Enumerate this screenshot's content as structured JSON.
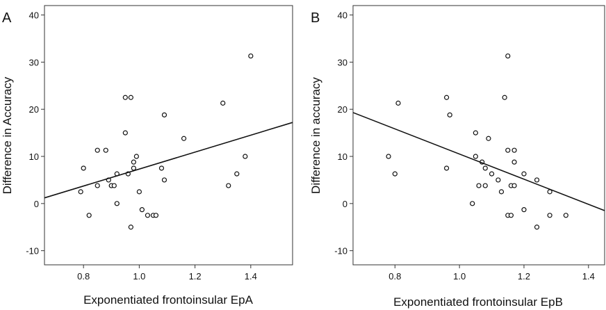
{
  "chart_data": [
    {
      "type": "scatter",
      "panel_label": "A",
      "xlabel": "Exponentiated frontoinsular EpA",
      "ylabel": "Difference in Accuracy",
      "xlim": [
        0.66,
        1.55
      ],
      "ylim": [
        -13,
        42
      ],
      "xticks": [
        0.8,
        1.0,
        1.2,
        1.4
      ],
      "xtick_labels": [
        "0.8",
        "1.0",
        "1.2",
        "1.4"
      ],
      "yticks": [
        -10,
        0,
        10,
        20,
        30,
        40
      ],
      "ytick_labels": [
        "-10",
        "0",
        "10",
        "20",
        "30",
        "40"
      ],
      "grid": false,
      "fit_line": {
        "x": [
          0.66,
          1.55
        ],
        "y": [
          1.2,
          17.2
        ]
      },
      "points": [
        {
          "x": 0.79,
          "y": 2.5
        },
        {
          "x": 0.8,
          "y": 7.5
        },
        {
          "x": 0.82,
          "y": -2.5
        },
        {
          "x": 0.85,
          "y": 3.8
        },
        {
          "x": 0.85,
          "y": 11.3
        },
        {
          "x": 0.88,
          "y": 11.3
        },
        {
          "x": 0.89,
          "y": 5.0
        },
        {
          "x": 0.9,
          "y": 3.8
        },
        {
          "x": 0.9,
          "y": 3.8
        },
        {
          "x": 0.91,
          "y": 3.8
        },
        {
          "x": 0.92,
          "y": 6.3
        },
        {
          "x": 0.92,
          "y": 0.0
        },
        {
          "x": 0.95,
          "y": 22.5
        },
        {
          "x": 0.95,
          "y": 15.0
        },
        {
          "x": 0.96,
          "y": 6.3
        },
        {
          "x": 0.97,
          "y": 22.5
        },
        {
          "x": 0.97,
          "y": -5.0
        },
        {
          "x": 0.98,
          "y": 8.8
        },
        {
          "x": 0.98,
          "y": 7.5
        },
        {
          "x": 0.99,
          "y": 10.0
        },
        {
          "x": 1.0,
          "y": 2.5
        },
        {
          "x": 1.01,
          "y": -1.3
        },
        {
          "x": 1.03,
          "y": -2.5
        },
        {
          "x": 1.05,
          "y": -2.5
        },
        {
          "x": 1.06,
          "y": -2.5
        },
        {
          "x": 1.08,
          "y": 7.5
        },
        {
          "x": 1.09,
          "y": 5.0
        },
        {
          "x": 1.09,
          "y": 18.8
        },
        {
          "x": 1.16,
          "y": 13.8
        },
        {
          "x": 1.3,
          "y": 21.3
        },
        {
          "x": 1.32,
          "y": 3.8
        },
        {
          "x": 1.35,
          "y": 6.3
        },
        {
          "x": 1.38,
          "y": 10.0
        },
        {
          "x": 1.4,
          "y": 31.3
        }
      ]
    },
    {
      "type": "scatter",
      "panel_label": "B",
      "xlabel": "Exponentiated frontoinsular EpB",
      "ylabel": "Difference in accuracy",
      "xlim": [
        0.67,
        1.45
      ],
      "ylim": [
        -13,
        42
      ],
      "xticks": [
        0.8,
        1.0,
        1.2,
        1.4
      ],
      "xtick_labels": [
        "0.8",
        "1.0",
        "1.2",
        "1.4"
      ],
      "yticks": [
        -10,
        0,
        10,
        20,
        30,
        40
      ],
      "ytick_labels": [
        "-10",
        "0",
        "10",
        "20",
        "30",
        "40"
      ],
      "grid": false,
      "fit_line": {
        "x": [
          0.67,
          1.45
        ],
        "y": [
          19.3,
          -1.5
        ]
      },
      "points": [
        {
          "x": 0.78,
          "y": 10.0
        },
        {
          "x": 0.8,
          "y": 6.3
        },
        {
          "x": 0.81,
          "y": 21.3
        },
        {
          "x": 0.96,
          "y": 22.5
        },
        {
          "x": 0.96,
          "y": 7.5
        },
        {
          "x": 0.97,
          "y": 18.8
        },
        {
          "x": 1.04,
          "y": 0.0
        },
        {
          "x": 1.05,
          "y": 15.0
        },
        {
          "x": 1.05,
          "y": 10.0
        },
        {
          "x": 1.06,
          "y": 3.8
        },
        {
          "x": 1.07,
          "y": 8.8
        },
        {
          "x": 1.08,
          "y": 3.8
        },
        {
          "x": 1.08,
          "y": 7.5
        },
        {
          "x": 1.09,
          "y": 13.8
        },
        {
          "x": 1.1,
          "y": 6.3
        },
        {
          "x": 1.12,
          "y": 5.0
        },
        {
          "x": 1.13,
          "y": 2.5
        },
        {
          "x": 1.14,
          "y": 22.5
        },
        {
          "x": 1.15,
          "y": 31.3
        },
        {
          "x": 1.15,
          "y": 11.3
        },
        {
          "x": 1.15,
          "y": -2.5
        },
        {
          "x": 1.16,
          "y": 3.8
        },
        {
          "x": 1.16,
          "y": -2.5
        },
        {
          "x": 1.17,
          "y": 11.3
        },
        {
          "x": 1.17,
          "y": 8.8
        },
        {
          "x": 1.17,
          "y": 3.8
        },
        {
          "x": 1.2,
          "y": 6.3
        },
        {
          "x": 1.2,
          "y": -1.3
        },
        {
          "x": 1.24,
          "y": 5.0
        },
        {
          "x": 1.24,
          "y": -5.0
        },
        {
          "x": 1.28,
          "y": 2.5
        },
        {
          "x": 1.28,
          "y": -2.5
        },
        {
          "x": 1.33,
          "y": -2.5
        }
      ]
    }
  ]
}
